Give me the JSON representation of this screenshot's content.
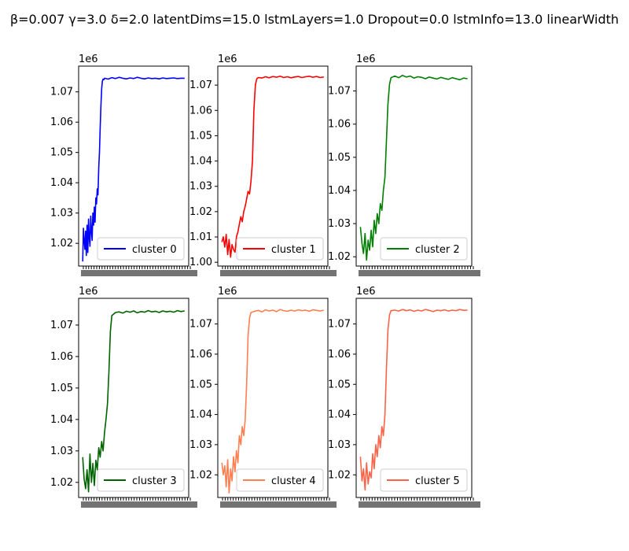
{
  "figure": {
    "suptitle": "β=0.007 γ=3.0 δ=2.0 latentDims=15.0 lstmLayers=1.0 Dropout=0.0 lstmInfo=13.0 linearWidth"
  },
  "chart_data": [
    {
      "type": "line",
      "title": "",
      "xlabel": "",
      "ylabel": "",
      "y_offset_label": "1e6",
      "ylim": [
        1.0125,
        1.0785
      ],
      "yticks": [
        "1.02",
        "1.03",
        "1.04",
        "1.05",
        "1.06",
        "1.07"
      ],
      "grid": false,
      "legend": "lower-right",
      "series": [
        {
          "name": "cluster 0",
          "color": "#0000ff",
          "x": [
            0,
            1,
            2,
            3,
            4,
            5,
            6,
            7,
            8,
            9,
            10,
            11,
            12,
            13,
            14,
            15,
            16,
            17,
            18,
            19,
            20,
            21,
            22,
            23,
            24,
            25,
            26,
            27,
            28,
            29,
            30,
            35,
            40,
            45,
            50,
            55,
            60,
            65,
            70,
            75,
            80,
            85,
            90,
            95,
            100,
            105,
            110,
            115,
            120,
            125,
            130,
            135,
            140
          ],
          "y": [
            1.014,
            1.025,
            1.021,
            1.018,
            1.024,
            1.016,
            1.026,
            1.017,
            1.028,
            1.022,
            1.019,
            1.029,
            1.024,
            1.021,
            1.03,
            1.026,
            1.032,
            1.027,
            1.035,
            1.033,
            1.038,
            1.036,
            1.045,
            1.05,
            1.058,
            1.065,
            1.071,
            1.0735,
            1.0742,
            1.074,
            1.0745,
            1.0742,
            1.0747,
            1.0744,
            1.0748,
            1.0745,
            1.0743,
            1.0746,
            1.0744,
            1.0748,
            1.0745,
            1.0743,
            1.0746,
            1.0744,
            1.0745,
            1.0743,
            1.0746,
            1.0744,
            1.0745,
            1.0746,
            1.0744,
            1.0745,
            1.0745
          ]
        }
      ]
    },
    {
      "type": "line",
      "title": "",
      "xlabel": "",
      "ylabel": "",
      "y_offset_label": "1e6",
      "ylim": [
        0.9985,
        1.0775
      ],
      "yticks": [
        "1.00",
        "1.01",
        "1.02",
        "1.03",
        "1.04",
        "1.05",
        "1.06",
        "1.07"
      ],
      "grid": false,
      "legend": "lower-right",
      "series": [
        {
          "name": "cluster 1",
          "color": "#ff0000",
          "x": [
            0,
            2,
            4,
            6,
            8,
            10,
            12,
            14,
            16,
            18,
            20,
            22,
            24,
            26,
            28,
            30,
            32,
            34,
            36,
            38,
            40,
            42,
            44,
            46,
            48,
            50,
            55,
            60,
            65,
            70,
            75,
            80,
            85,
            90,
            95,
            100,
            105,
            110,
            115,
            120,
            125,
            130,
            135,
            140
          ],
          "y": [
            1.008,
            1.01,
            1.006,
            1.011,
            1.003,
            1.009,
            1.002,
            1.007,
            1.005,
            1.004,
            1.01,
            1.012,
            1.015,
            1.018,
            1.016,
            1.02,
            1.022,
            1.025,
            1.028,
            1.027,
            1.032,
            1.04,
            1.06,
            1.07,
            1.0725,
            1.073,
            1.0728,
            1.0733,
            1.0729,
            1.0734,
            1.0731,
            1.0735,
            1.073,
            1.0733,
            1.0729,
            1.0732,
            1.0734,
            1.073,
            1.0733,
            1.0735,
            1.0731,
            1.0734,
            1.073,
            1.0732
          ]
        }
      ]
    },
    {
      "type": "line",
      "title": "",
      "xlabel": "",
      "ylabel": "",
      "y_offset_label": "1e6",
      "ylim": [
        1.0172,
        1.0775
      ],
      "yticks": [
        "1.02",
        "1.03",
        "1.04",
        "1.05",
        "1.06",
        "1.07"
      ],
      "grid": false,
      "legend": "lower-right",
      "series": [
        {
          "name": "cluster 2",
          "color": "#008000",
          "x": [
            0,
            2,
            4,
            6,
            8,
            10,
            12,
            14,
            16,
            18,
            20,
            22,
            24,
            26,
            28,
            30,
            32,
            34,
            36,
            38,
            40,
            45,
            50,
            55,
            60,
            65,
            70,
            75,
            80,
            85,
            90,
            95,
            100,
            105,
            110,
            115,
            120,
            125,
            130,
            135,
            140
          ],
          "y": [
            1.029,
            1.024,
            1.021,
            1.027,
            1.019,
            1.025,
            1.022,
            1.028,
            1.023,
            1.031,
            1.027,
            1.033,
            1.03,
            1.036,
            1.034,
            1.04,
            1.044,
            1.055,
            1.066,
            1.072,
            1.074,
            1.0745,
            1.074,
            1.0747,
            1.0742,
            1.0745,
            1.0739,
            1.0743,
            1.0741,
            1.0737,
            1.0742,
            1.0739,
            1.0736,
            1.0741,
            1.0738,
            1.0735,
            1.074,
            1.0737,
            1.0734,
            1.0739,
            1.0737
          ]
        }
      ]
    },
    {
      "type": "line",
      "title": "",
      "xlabel": "",
      "ylabel": "",
      "y_offset_label": "1e6",
      "ylim": [
        1.0152,
        1.0785
      ],
      "yticks": [
        "1.02",
        "1.03",
        "1.04",
        "1.05",
        "1.06",
        "1.07"
      ],
      "grid": false,
      "legend": "lower-right",
      "series": [
        {
          "name": "cluster 3",
          "color": "#006400",
          "x": [
            0,
            2,
            4,
            6,
            8,
            10,
            12,
            14,
            16,
            18,
            20,
            22,
            24,
            26,
            28,
            30,
            32,
            34,
            36,
            38,
            40,
            45,
            50,
            55,
            60,
            65,
            70,
            75,
            80,
            85,
            90,
            95,
            100,
            105,
            110,
            115,
            120,
            125,
            130,
            135,
            140
          ],
          "y": [
            1.028,
            1.021,
            1.018,
            1.024,
            1.017,
            1.029,
            1.02,
            1.026,
            1.019,
            1.027,
            1.024,
            1.031,
            1.028,
            1.033,
            1.03,
            1.036,
            1.04,
            1.045,
            1.055,
            1.068,
            1.073,
            1.074,
            1.0742,
            1.0738,
            1.0744,
            1.0741,
            1.0745,
            1.0739,
            1.0743,
            1.0741,
            1.0746,
            1.0742,
            1.0744,
            1.074,
            1.0745,
            1.0742,
            1.0744,
            1.0741,
            1.0746,
            1.0743,
            1.0745
          ]
        }
      ]
    },
    {
      "type": "line",
      "title": "",
      "xlabel": "",
      "ylabel": "",
      "y_offset_label": "1e6",
      "ylim": [
        1.0125,
        1.0785
      ],
      "yticks": [
        "1.02",
        "1.03",
        "1.04",
        "1.05",
        "1.06",
        "1.07"
      ],
      "grid": false,
      "legend": "lower-right",
      "series": [
        {
          "name": "cluster 4",
          "color": "#ff7f50",
          "x": [
            0,
            2,
            4,
            6,
            8,
            10,
            12,
            14,
            16,
            18,
            20,
            22,
            24,
            26,
            28,
            30,
            32,
            34,
            36,
            38,
            40,
            45,
            50,
            55,
            60,
            65,
            70,
            75,
            80,
            85,
            90,
            95,
            100,
            105,
            110,
            115,
            120,
            125,
            130,
            135,
            140
          ],
          "y": [
            1.024,
            1.02,
            1.023,
            1.016,
            1.025,
            1.014,
            1.022,
            1.018,
            1.026,
            1.021,
            1.028,
            1.024,
            1.033,
            1.03,
            1.036,
            1.033,
            1.038,
            1.05,
            1.066,
            1.072,
            1.0738,
            1.0742,
            1.0745,
            1.074,
            1.0747,
            1.0743,
            1.0746,
            1.0741,
            1.0748,
            1.0744,
            1.0742,
            1.0746,
            1.0743,
            1.0747,
            1.0744,
            1.0746,
            1.0742,
            1.0747,
            1.0745,
            1.0743,
            1.0746
          ]
        }
      ]
    },
    {
      "type": "line",
      "title": "",
      "xlabel": "",
      "ylabel": "",
      "y_offset_label": "1e6",
      "ylim": [
        1.0125,
        1.0785
      ],
      "yticks": [
        "1.02",
        "1.03",
        "1.04",
        "1.05",
        "1.06",
        "1.07"
      ],
      "grid": false,
      "legend": "lower-right",
      "series": [
        {
          "name": "cluster 5",
          "color": "#ff6347",
          "x": [
            0,
            2,
            4,
            6,
            8,
            10,
            12,
            14,
            16,
            18,
            20,
            22,
            24,
            26,
            28,
            30,
            32,
            34,
            36,
            38,
            40,
            45,
            50,
            55,
            60,
            65,
            70,
            75,
            80,
            85,
            90,
            95,
            100,
            105,
            110,
            115,
            120,
            125,
            130,
            135,
            140
          ],
          "y": [
            1.026,
            1.018,
            1.022,
            1.015,
            1.024,
            1.017,
            1.021,
            1.019,
            1.027,
            1.022,
            1.03,
            1.026,
            1.033,
            1.029,
            1.036,
            1.033,
            1.04,
            1.055,
            1.068,
            1.073,
            1.0744,
            1.0746,
            1.0743,
            1.0748,
            1.0744,
            1.0747,
            1.0742,
            1.0746,
            1.0743,
            1.0748,
            1.0745,
            1.0741,
            1.0746,
            1.0744,
            1.0747,
            1.0743,
            1.0746,
            1.0744,
            1.0748,
            1.0745,
            1.0746
          ]
        }
      ]
    }
  ]
}
